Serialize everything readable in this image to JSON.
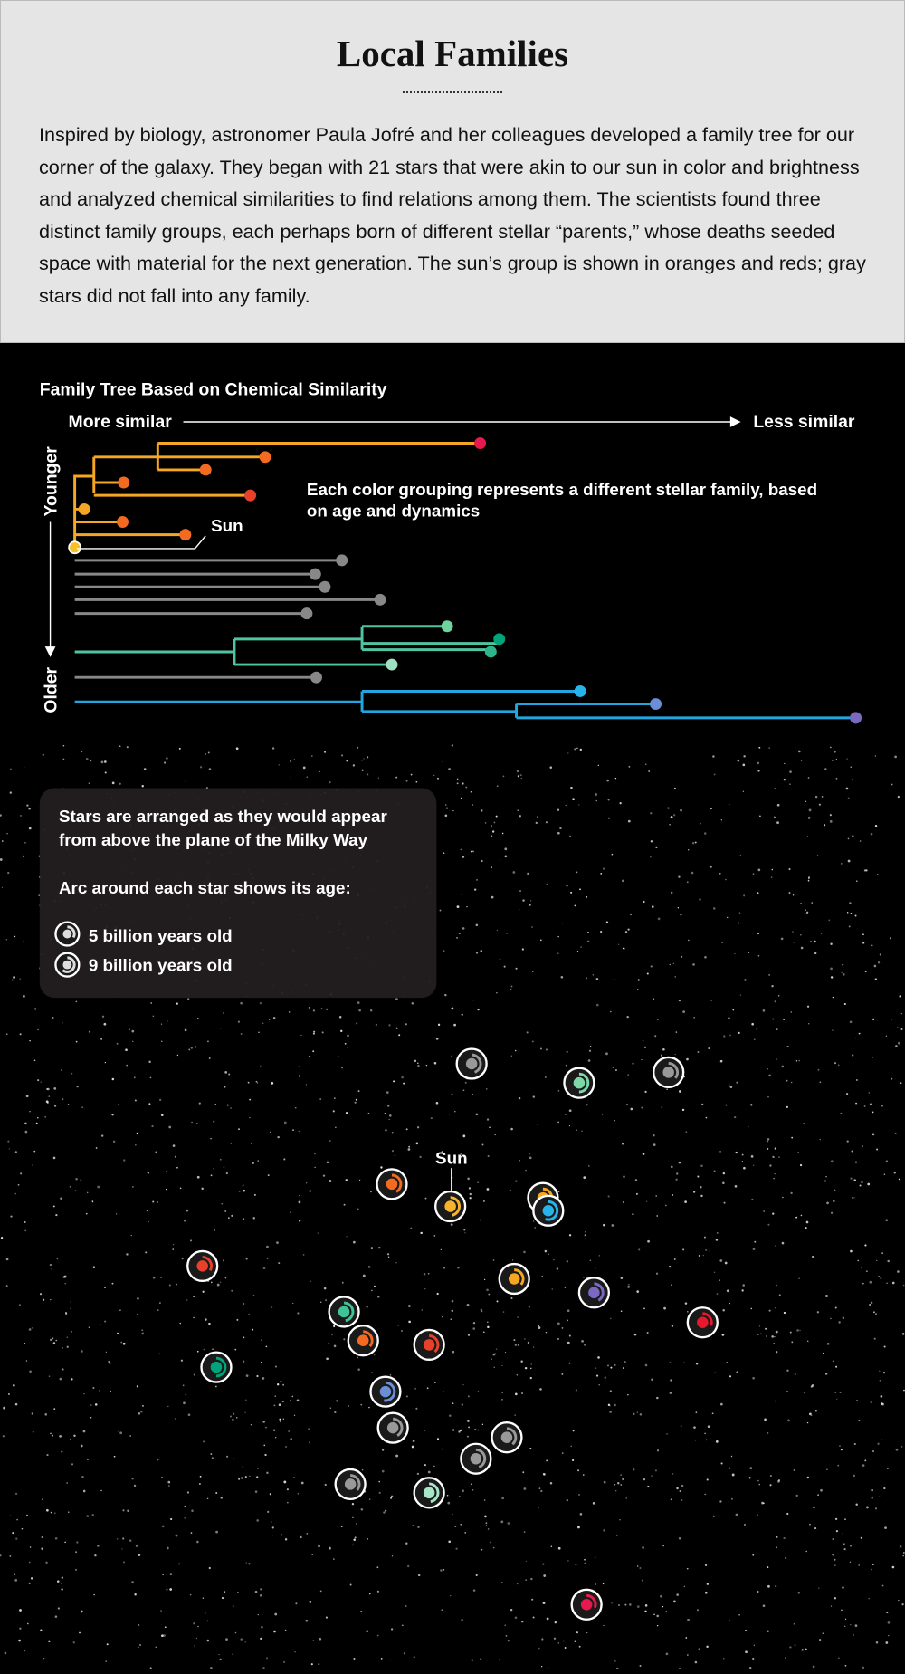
{
  "header": {
    "title": "Local Families",
    "body": "Inspired by biology, astronomer Paula Jofré and her colleagues developed a family tree for our corner of the galaxy. They began with 21 stars that were akin to our sun in color and brightness and analyzed chemical similarities to find relations among them. The scientists found three distinct family groups, each perhaps born of different stellar “parents,” whose deaths seeded space with material for the next generation. The sun’s group is shown in oranges and reds; gray stars did not fall into any family."
  },
  "tree": {
    "title": "Family Tree Based on Chemical Similarity",
    "axis_left": "More similar",
    "axis_right": "Less similar",
    "axis_top": "Younger",
    "axis_bottom": "Older",
    "sun_label": "Sun",
    "annotation": "Each color grouping represents a different stellar family, based on age and dynamics"
  },
  "map": {
    "note": "Stars are arranged as they would appear from above the plane of the Milky Way",
    "age_heading": "Arc around each star shows its age:",
    "legend": [
      "5 billion years old",
      "9 billion years old"
    ],
    "sun_label": "Sun"
  }
}
